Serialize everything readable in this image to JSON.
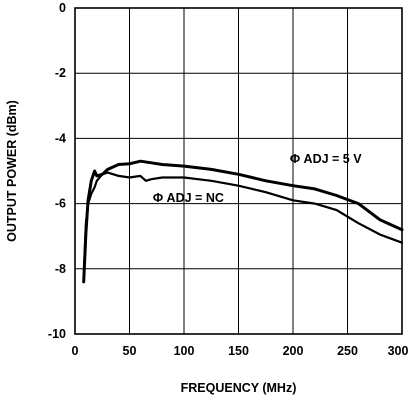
{
  "chart_data": {
    "type": "line",
    "title": "",
    "xlabel": "FREQUENCY (MHz)",
    "ylabel": "OUTPUT POWER (dBm)",
    "xlim": [
      0,
      300
    ],
    "ylim": [
      -10,
      0
    ],
    "x_ticks": [
      0,
      50,
      100,
      150,
      200,
      250,
      300
    ],
    "x_tick_labels": [
      "0",
      "50",
      "100",
      "150",
      "200",
      "250",
      "300"
    ],
    "y_ticks": [
      0,
      -2,
      -4,
      -6,
      -8,
      -10
    ],
    "y_tick_labels": [
      "0",
      "-2",
      "-4",
      "-6",
      "-8",
      "-10"
    ],
    "grid": true,
    "series": [
      {
        "name": "Φ ADJ = 5 V",
        "x": [
          8,
          10,
          12,
          15,
          18,
          20,
          25,
          30,
          40,
          50,
          60,
          70,
          80,
          100,
          125,
          150,
          175,
          200,
          220,
          240,
          260,
          280,
          300
        ],
        "y": [
          -8.4,
          -6.9,
          -5.9,
          -5.3,
          -5.0,
          -5.15,
          -5.1,
          -4.95,
          -4.8,
          -4.78,
          -4.7,
          -4.75,
          -4.8,
          -4.85,
          -4.95,
          -5.1,
          -5.3,
          -5.45,
          -5.55,
          -5.75,
          -6.0,
          -6.5,
          -6.8
        ]
      },
      {
        "name": "Φ ADJ = NC",
        "x": [
          8,
          10,
          12,
          15,
          18,
          20,
          25,
          30,
          40,
          50,
          60,
          65,
          70,
          80,
          100,
          125,
          150,
          175,
          200,
          220,
          240,
          260,
          280,
          300
        ],
        "y": [
          -8.3,
          -6.6,
          -6.0,
          -5.7,
          -5.5,
          -5.3,
          -5.1,
          -5.05,
          -5.15,
          -5.2,
          -5.15,
          -5.3,
          -5.25,
          -5.2,
          -5.2,
          -5.3,
          -5.45,
          -5.65,
          -5.9,
          -6.0,
          -6.2,
          -6.6,
          -6.95,
          -7.2
        ]
      }
    ],
    "annotations": [
      {
        "text": "Φ ADJ = 5 V",
        "x": 230,
        "y": -4.75
      },
      {
        "text": "Φ ADJ = NC",
        "x": 104,
        "y": -5.95
      }
    ]
  }
}
